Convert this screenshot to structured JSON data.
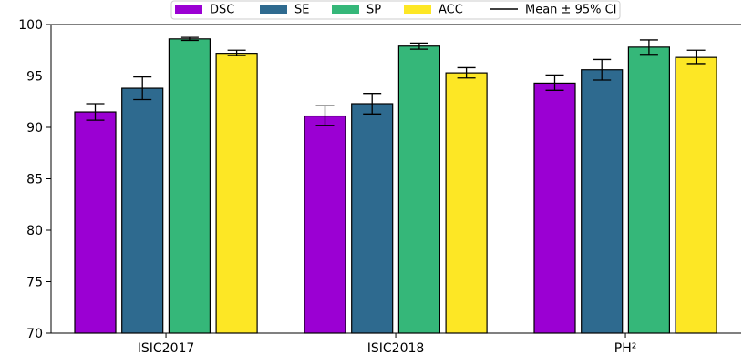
{
  "chart_data": {
    "type": "bar",
    "categories": [
      "ISIC2017",
      "ISIC2018",
      "PH²"
    ],
    "series": [
      {
        "name": "DSC",
        "color": "#9b00d3",
        "values": [
          91.5,
          91.1,
          94.3
        ],
        "ci": [
          [
            90.7,
            92.3
          ],
          [
            90.2,
            92.1
          ],
          [
            93.6,
            95.1
          ]
        ]
      },
      {
        "name": "SE",
        "color": "#2e6a8f",
        "values": [
          93.8,
          92.3,
          95.6
        ],
        "ci": [
          [
            92.7,
            94.9
          ],
          [
            91.3,
            93.3
          ],
          [
            94.6,
            96.6
          ]
        ]
      },
      {
        "name": "SP",
        "color": "#35b779",
        "values": [
          98.6,
          97.9,
          97.8
        ],
        "ci": [
          [
            98.45,
            98.75
          ],
          [
            97.6,
            98.2
          ],
          [
            97.1,
            98.5
          ]
        ]
      },
      {
        "name": "ACC",
        "color": "#fde725",
        "values": [
          97.2,
          95.3,
          96.8
        ],
        "ci": [
          [
            97.0,
            97.5
          ],
          [
            94.8,
            95.8
          ],
          [
            96.2,
            97.5
          ]
        ]
      }
    ],
    "error_bar_label": "Mean ± 95% CI",
    "ylim": [
      70,
      100
    ],
    "yticks": [
      70,
      75,
      80,
      85,
      90,
      95,
      100
    ],
    "title": "",
    "xlabel": "",
    "ylabel": "",
    "grid": false,
    "legend_position": "top-center"
  }
}
